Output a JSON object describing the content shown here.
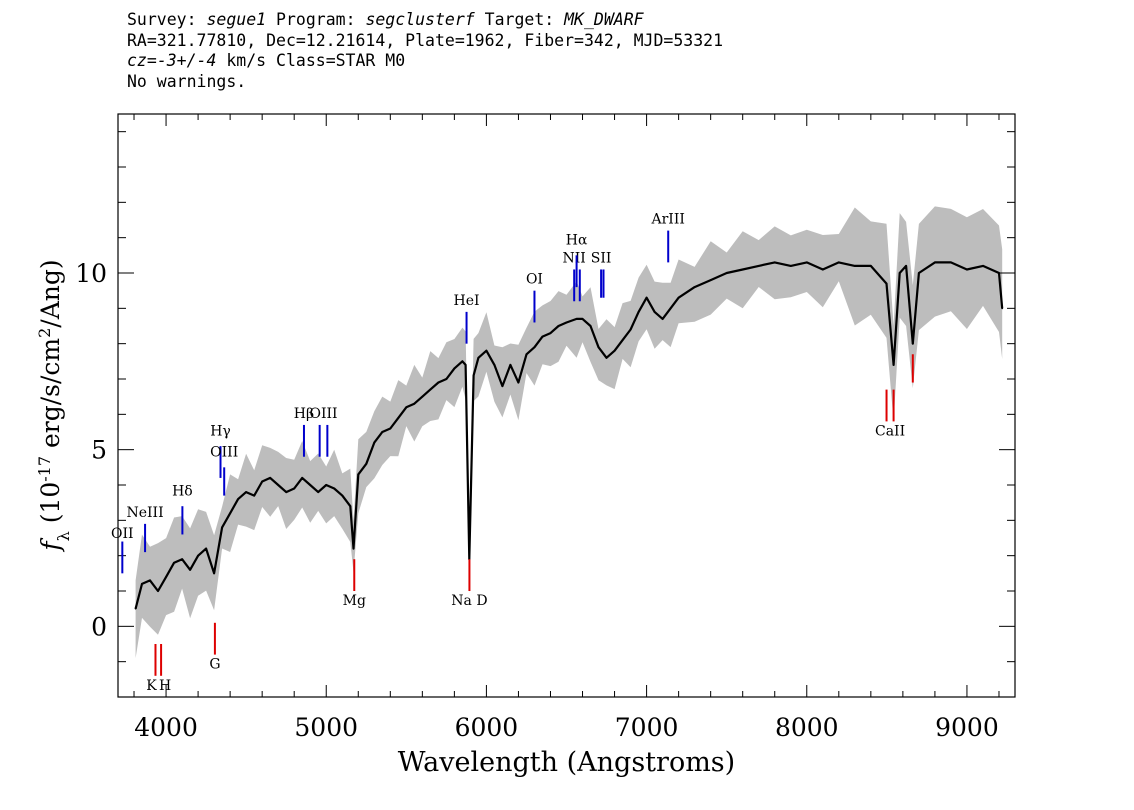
{
  "header": {
    "survey_label": "Survey: ",
    "survey": "segue1",
    "program_label": " Program: ",
    "program": "segclusterf",
    "target_label": " Target: ",
    "target": "MK_DWARF",
    "line2": "RA=321.77810, Dec=12.21614, Plate=1962, Fiber=342, MJD=53321",
    "cz_label": "cz=",
    "cz_value": "-3+/-4",
    "cz_rest": " km/s Class=STAR M0",
    "line4": "No warnings."
  },
  "chart_data": {
    "type": "line",
    "xlabel": "Wavelength (Angstroms)",
    "ylabel": "f_λ (10^-17 erg/s/cm^2/Ang)",
    "xlim": [
      3700,
      9300
    ],
    "ylim": [
      -2,
      14.5
    ],
    "x_ticks": [
      4000,
      5000,
      6000,
      7000,
      8000,
      9000
    ],
    "y_ticks": [
      0,
      5,
      10
    ],
    "colors": {
      "flux": "#000000",
      "error_band": "#bdbdbd",
      "emission": "#0000cc",
      "absorption": "#dd0000"
    },
    "series": [
      {
        "x": [
          3810,
          3850,
          3900,
          3950,
          4000,
          4050,
          4100,
          4150,
          4200,
          4250,
          4300,
          4350,
          4400,
          4450,
          4500,
          4550,
          4600,
          4650,
          4700,
          4750,
          4800,
          4850,
          4900,
          4950,
          5000,
          5050,
          5100,
          5150,
          5170,
          5200,
          5250,
          5300,
          5350,
          5400,
          5450,
          5500,
          5550,
          5600,
          5650,
          5700,
          5750,
          5800,
          5850,
          5870,
          5893,
          5920,
          5950,
          6000,
          6050,
          6100,
          6150,
          6200,
          6250,
          6300,
          6350,
          6400,
          6450,
          6500,
          6563,
          6600,
          6650,
          6700,
          6750,
          6800,
          6850,
          6900,
          6950,
          7000,
          7050,
          7100,
          7150,
          7200,
          7300,
          7400,
          7500,
          7600,
          7700,
          7800,
          7900,
          8000,
          8100,
          8200,
          8300,
          8400,
          8498,
          8542,
          8580,
          8620,
          8662,
          8700,
          8800,
          8900,
          9000,
          9100,
          9200,
          9220
        ],
        "values": [
          0.5,
          1.2,
          1.3,
          1.0,
          1.4,
          1.8,
          1.9,
          1.6,
          2.0,
          2.2,
          1.5,
          2.8,
          3.2,
          3.6,
          3.8,
          3.7,
          4.1,
          4.2,
          4.0,
          3.8,
          3.9,
          4.2,
          4.0,
          3.8,
          4.0,
          3.9,
          3.7,
          3.4,
          2.2,
          4.3,
          4.6,
          5.2,
          5.5,
          5.6,
          5.9,
          6.2,
          6.3,
          6.5,
          6.7,
          6.9,
          7.0,
          7.3,
          7.5,
          7.4,
          1.9,
          7.1,
          7.6,
          7.8,
          7.4,
          6.8,
          7.4,
          6.9,
          7.7,
          7.9,
          8.2,
          8.3,
          8.5,
          8.6,
          8.7,
          8.7,
          8.5,
          7.9,
          7.6,
          7.8,
          8.1,
          8.4,
          8.9,
          9.3,
          8.9,
          8.7,
          9.0,
          9.3,
          9.6,
          9.8,
          10.0,
          10.1,
          10.2,
          10.3,
          10.2,
          10.3,
          10.1,
          10.3,
          10.2,
          10.2,
          9.7,
          7.4,
          10.0,
          10.2,
          8.0,
          10.0,
          10.3,
          10.3,
          10.1,
          10.2,
          10.0,
          9.0
        ]
      }
    ],
    "lines": [
      {
        "label": "OII",
        "wave": 3727,
        "kind": "emission",
        "y0": 1.5,
        "y1": 2.4,
        "label_y": 2.5
      },
      {
        "label": "NeIII",
        "wave": 3869,
        "kind": "emission",
        "y0": 2.1,
        "y1": 2.9,
        "label_y": 3.1
      },
      {
        "label": "Hδ",
        "wave": 4102,
        "kind": "emission",
        "y0": 2.6,
        "y1": 3.4,
        "label_y": 3.7
      },
      {
        "label": "Hγ",
        "wave": 4340,
        "kind": "emission",
        "y0": 4.2,
        "y1": 5.1,
        "label_y": 5.4
      },
      {
        "label": "OIII",
        "wave": 4363,
        "kind": "emission",
        "y0": 3.7,
        "y1": 4.5,
        "label_y": 4.8
      },
      {
        "label": "Hβ",
        "wave": 4861,
        "kind": "emission",
        "y0": 4.8,
        "y1": 5.7,
        "label_y": 5.9
      },
      {
        "label": "OIII",
        "wave": 4959,
        "kind": "emission",
        "y0": 4.8,
        "y1": 5.7,
        "label_y": 5.9
      },
      {
        "label": "OIII",
        "wave": 5007,
        "kind": "emission",
        "y0": 4.8,
        "y1": 5.7,
        "label_y": 5.9
      },
      {
        "label": "HeI",
        "wave": 5876,
        "kind": "emission",
        "y0": 8.0,
        "y1": 8.9,
        "label_y": 9.1
      },
      {
        "label": "OI",
        "wave": 6300,
        "kind": "emission",
        "y0": 8.6,
        "y1": 9.5,
        "label_y": 9.7
      },
      {
        "label": "NII",
        "wave": 6548,
        "kind": "emission",
        "y0": 9.2,
        "y1": 10.1,
        "label_y": 10.3
      },
      {
        "label": "Hα",
        "wave": 6563,
        "kind": "emission",
        "y0": 9.6,
        "y1": 10.5,
        "label_y": 10.8
      },
      {
        "label": "NII",
        "wave": 6583,
        "kind": "emission",
        "y0": 9.2,
        "y1": 10.1,
        "label_y": 10.3
      },
      {
        "label": "SII",
        "wave": 6716,
        "kind": "emission",
        "y0": 9.3,
        "y1": 10.1,
        "label_y": 10.3
      },
      {
        "label": "SII",
        "wave": 6731,
        "kind": "emission",
        "y0": 9.3,
        "y1": 10.1,
        "label_y": 10.3
      },
      {
        "label": "ArIII",
        "wave": 7135,
        "kind": "emission",
        "y0": 10.3,
        "y1": 11.2,
        "label_y": 11.4
      },
      {
        "label": "K",
        "wave": 3934,
        "kind": "absorption",
        "y0": -1.4,
        "y1": -0.5,
        "label_y": -1.8
      },
      {
        "label": "H",
        "wave": 3969,
        "kind": "absorption",
        "y0": -1.4,
        "y1": -0.5,
        "label_y": -1.8
      },
      {
        "label": "G",
        "wave": 4305,
        "kind": "absorption",
        "y0": -0.8,
        "y1": 0.1,
        "label_y": -1.2
      },
      {
        "label": "Mg",
        "wave": 5175,
        "kind": "absorption",
        "y0": 1.0,
        "y1": 1.9,
        "label_y": 0.6
      },
      {
        "label": "Na D",
        "wave": 5894,
        "kind": "absorption",
        "y0": 1.0,
        "y1": 1.9,
        "label_y": 0.6
      },
      {
        "label": "CaII",
        "wave": 8498,
        "kind": "absorption",
        "y0": 5.8,
        "y1": 6.7,
        "label_y": 5.4
      },
      {
        "label": "CaII",
        "wave": 8542,
        "kind": "absorption",
        "y0": 5.8,
        "y1": 6.7,
        "label_y": 5.4
      },
      {
        "label": "CaII",
        "wave": 8662,
        "kind": "absorption",
        "y0": 6.9,
        "y1": 7.7,
        "label_y": 7.3
      }
    ]
  }
}
